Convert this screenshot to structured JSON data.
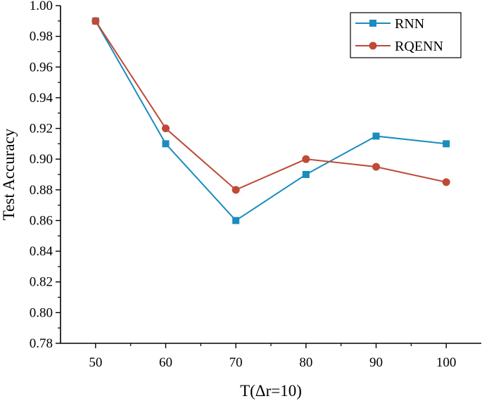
{
  "chart_data": {
    "type": "line",
    "title": "",
    "xlabel": "T(Δr=10)",
    "ylabel": "Test Accuracy",
    "x": [
      50,
      60,
      70,
      80,
      90,
      100
    ],
    "x_tick_labels": [
      "50",
      "60",
      "70",
      "80",
      "90",
      "100"
    ],
    "y_tick_labels": [
      "0.78",
      "0.80",
      "0.82",
      "0.84",
      "0.86",
      "0.88",
      "0.90",
      "0.92",
      "0.94",
      "0.96",
      "0.98",
      "1.00"
    ],
    "xlim": [
      45,
      105
    ],
    "ylim": [
      0.78,
      1.0
    ],
    "y_ticks": [
      0.78,
      0.8,
      0.82,
      0.84,
      0.86,
      0.88,
      0.9,
      0.92,
      0.94,
      0.96,
      0.98,
      1.0
    ],
    "grid": false,
    "legend_position": "top-right",
    "series": [
      {
        "name": "RNN",
        "marker": "square",
        "color": "#1a8cbf",
        "values": [
          0.99,
          0.91,
          0.86,
          0.89,
          0.915,
          0.91
        ]
      },
      {
        "name": "RQENN",
        "marker": "circle",
        "color": "#bf4a36",
        "values": [
          0.99,
          0.92,
          0.88,
          0.9,
          0.895,
          0.885
        ]
      }
    ]
  }
}
